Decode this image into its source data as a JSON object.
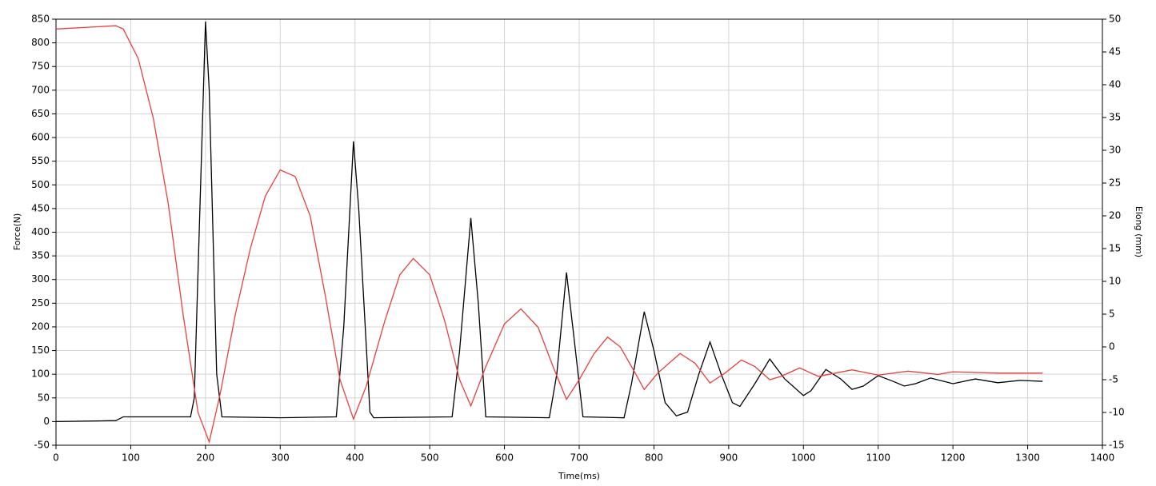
{
  "chart_data": {
    "type": "line",
    "xlabel": "Time(ms)",
    "ylabel": "Force(N)",
    "y2label": "Elong (mm)",
    "xlim": [
      0,
      1400
    ],
    "xticks": [
      0,
      100,
      200,
      300,
      400,
      500,
      600,
      700,
      800,
      900,
      1000,
      1100,
      1200,
      1300,
      1400
    ],
    "ylim": [
      -50,
      850
    ],
    "yticks": [
      -50,
      0,
      50,
      100,
      150,
      200,
      250,
      300,
      350,
      400,
      450,
      500,
      550,
      600,
      650,
      700,
      750,
      800,
      850
    ],
    "y2lim": [
      -15,
      50
    ],
    "y2ticks": [
      -15,
      -10,
      -5,
      0,
      5,
      10,
      15,
      20,
      25,
      30,
      35,
      40,
      45,
      50
    ],
    "grid": true,
    "series": [
      {
        "color": "#000000",
        "x": [
          0,
          80,
          90,
          100,
          180,
          185,
          200,
          205,
          215,
          222,
          300,
          375,
          385,
          398,
          405,
          420,
          425,
          530,
          540,
          555,
          565,
          575,
          660,
          670,
          683,
          695,
          705,
          760,
          770,
          787,
          800,
          815,
          830,
          845,
          860,
          875,
          890,
          905,
          915,
          935,
          955,
          975,
          1000,
          1010,
          1030,
          1050,
          1065,
          1080,
          1100,
          1120,
          1135,
          1150,
          1170,
          1200,
          1230,
          1260,
          1290,
          1320
        ],
        "values": [
          0,
          2,
          10,
          10,
          10,
          50,
          845,
          700,
          100,
          10,
          8,
          10,
          200,
          592,
          450,
          20,
          8,
          10,
          150,
          430,
          250,
          10,
          8,
          100,
          315,
          150,
          10,
          8,
          80,
          232,
          150,
          40,
          12,
          20,
          100,
          168,
          100,
          40,
          32,
          80,
          132,
          90,
          55,
          65,
          110,
          90,
          68,
          75,
          97,
          85,
          75,
          80,
          92,
          80,
          90,
          82,
          87,
          85
        ]
      },
      {
        "color": "#e8403c",
        "axis": "y2",
        "x": [
          0,
          80,
          90,
          110,
          130,
          150,
          170,
          190,
          205,
          220,
          240,
          260,
          280,
          300,
          320,
          340,
          360,
          380,
          398,
          415,
          440,
          460,
          478,
          500,
          520,
          540,
          555,
          575,
          600,
          622,
          645,
          665,
          683,
          700,
          720,
          738,
          755,
          775,
          787,
          805,
          835,
          855,
          875,
          895,
          917,
          935,
          955,
          970,
          995,
          1020,
          1065,
          1100,
          1140,
          1180,
          1200,
          1260,
          1320
        ],
        "values": [
          48.5,
          49,
          48.5,
          44,
          35,
          22,
          5,
          -10,
          -14.5,
          -7,
          5,
          15,
          23,
          27,
          26,
          20,
          8,
          -5,
          -11,
          -6,
          4,
          11,
          13.5,
          11,
          4,
          -5,
          -9,
          -3,
          3.5,
          5.8,
          3,
          -3,
          -8,
          -5,
          -1,
          1.5,
          0,
          -4,
          -6.5,
          -4,
          -1,
          -2.5,
          -5.5,
          -4,
          -2,
          -3,
          -5,
          -4.5,
          -3.2,
          -4.5,
          -3.5,
          -4.3,
          -3.7,
          -4.2,
          -3.8,
          -4,
          -4
        ]
      }
    ]
  }
}
